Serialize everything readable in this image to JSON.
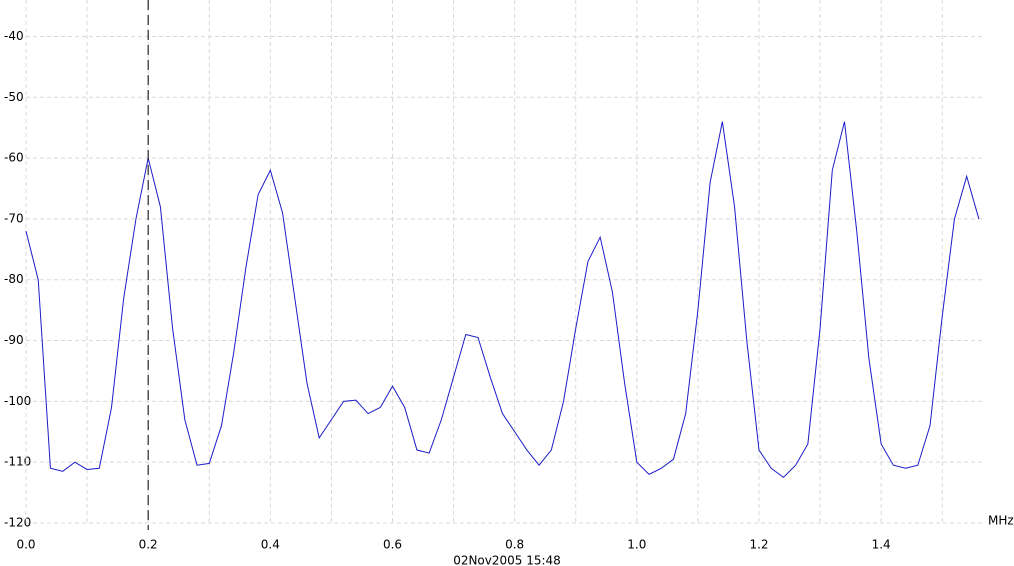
{
  "chart_data": {
    "type": "line",
    "x_label": "MHz",
    "timestamp": "02Nov2005 15:48",
    "x": [
      0,
      0.02,
      0.04,
      0.06,
      0.08,
      0.1,
      0.12,
      0.14,
      0.16,
      0.18,
      0.2,
      0.22,
      0.24,
      0.26,
      0.28,
      0.3,
      0.32,
      0.34,
      0.36,
      0.38,
      0.4,
      0.42,
      0.44,
      0.46,
      0.48,
      0.5,
      0.52,
      0.54,
      0.56,
      0.58,
      0.6,
      0.62,
      0.64,
      0.66,
      0.68,
      0.7,
      0.72,
      0.74,
      0.76,
      0.78,
      0.8,
      0.82,
      0.84,
      0.86,
      0.88,
      0.9,
      0.92,
      0.94,
      0.96,
      0.98,
      1.0,
      1.02,
      1.04,
      1.06,
      1.08,
      1.1,
      1.12,
      1.14,
      1.16,
      1.18,
      1.2,
      1.22,
      1.24,
      1.26,
      1.28,
      1.3,
      1.32,
      1.34,
      1.36,
      1.38,
      1.4,
      1.42,
      1.44,
      1.46,
      1.48,
      1.5,
      1.52,
      1.54,
      1.56
    ],
    "series": [
      {
        "color": "#1c1cc8",
        "values": [
          -72,
          -80,
          -111,
          -111.5,
          -110,
          -111.2,
          -111,
          -101,
          -83,
          -70,
          -60,
          -68,
          -88,
          -103,
          -110.5,
          -110.2,
          -104,
          -92,
          -78,
          -66,
          -62,
          -69,
          -83,
          -97,
          -106,
          -103,
          -100,
          -99.8,
          -102,
          -101,
          -97.5,
          -101,
          -108,
          -108.5,
          -103,
          -96,
          -89,
          -89.5,
          -96,
          -102,
          -105,
          -108,
          -110.5,
          -108,
          -100,
          -88,
          -77,
          -73,
          -82,
          -97,
          -110,
          -112,
          -111,
          -109.5,
          -102,
          -85,
          -64,
          -54,
          -68,
          -90,
          -108,
          -111,
          -112.5,
          -110.5,
          -107,
          -88,
          -62,
          -54,
          -72,
          -93,
          -107,
          -110.5,
          -111,
          -110.5,
          -104,
          -86,
          -70,
          -63,
          -70
        ]
      }
    ],
    "xlim": [
      0,
      1.57
    ],
    "ylim": [
      -120,
      -34
    ],
    "xticks": [
      {
        "value": 0,
        "label": "0.0"
      },
      0.2,
      0.4,
      0.6,
      0.8,
      {
        "value": 1,
        "label": "1.0"
      },
      1.2,
      1.4
    ],
    "xminor": [
      0.1,
      0.3,
      0.5,
      0.7,
      0.9,
      1.1,
      1.3,
      1.5
    ],
    "yticks": [
      -120,
      -110,
      -100,
      -90,
      -80,
      -70,
      -60,
      -50,
      -40
    ],
    "marker_x": 0.2,
    "grid": true
  }
}
